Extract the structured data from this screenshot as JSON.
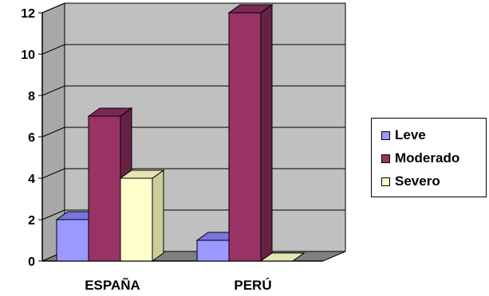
{
  "chart_data": {
    "type": "bar",
    "categories": [
      "ESPAÑA",
      "PERÚ"
    ],
    "series": [
      {
        "name": "Leve",
        "values": [
          2,
          1
        ],
        "color": "#9999FF",
        "side": "#6666CC",
        "top": "#7777DD"
      },
      {
        "name": "Moderado",
        "values": [
          7,
          12
        ],
        "color": "#993366",
        "side": "#662244",
        "top": "#7A2952"
      },
      {
        "name": "Severo",
        "values": [
          4,
          0
        ],
        "color": "#FFFFCC",
        "side": "#CCCC99",
        "top": "#E5E5B3"
      }
    ],
    "y_ticks": [
      "0",
      "2",
      "4",
      "6",
      "8",
      "10",
      "12"
    ],
    "ylim": [
      0,
      12
    ],
    "grid": true,
    "three_d": true,
    "legend_position": "right",
    "wall_color": "#C0C0C0",
    "floor_color": "#808080"
  }
}
